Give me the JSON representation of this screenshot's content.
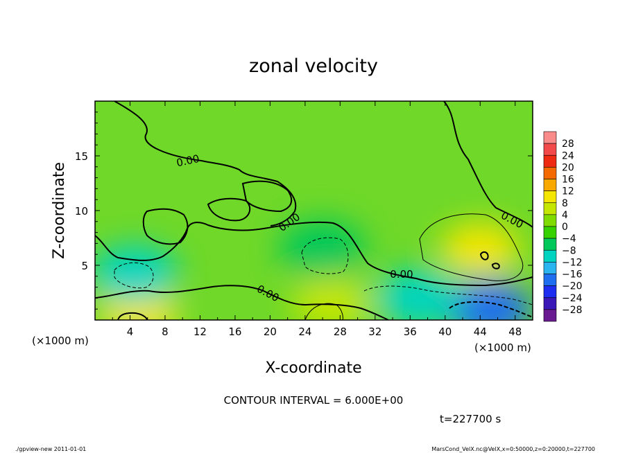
{
  "chart_data": {
    "type": "heatmap",
    "title": "zonal velocity",
    "xlabel": "X-coordinate",
    "ylabel": "Z-coordinate",
    "x_unit": "(×1000 m)",
    "y_unit": "(×1000 m)",
    "xlim": [
      0,
      50
    ],
    "ylim": [
      0,
      20
    ],
    "x_ticks": [
      "4",
      "8",
      "12",
      "16",
      "20",
      "24",
      "28",
      "32",
      "36",
      "40",
      "44",
      "48"
    ],
    "y_ticks": [
      "5",
      "10",
      "15"
    ],
    "contour_interval_text": "CONTOUR INTERVAL = 6.000E+00",
    "time_text": "t=227700 s",
    "colorbar": {
      "labels": [
        "28",
        "24",
        "20",
        "16",
        "12",
        "8",
        "4",
        "0",
        "−4",
        "−8",
        "−12",
        "−16",
        "−20",
        "−24",
        "−28"
      ],
      "colors": [
        "#f98b8b",
        "#f24a4a",
        "#ee2a12",
        "#f46a00",
        "#f9a800",
        "#f4e600",
        "#c4e600",
        "#80dc00",
        "#35d200",
        "#00c85a",
        "#00d4c0",
        "#2ab4f0",
        "#1e6ef0",
        "#1e2ef0",
        "#3a18b8",
        "#6a1a90"
      ]
    },
    "contour_labels": [
      "0.00",
      "0.00",
      "0.00",
      "0.00",
      "0.00"
    ],
    "features": [
      {
        "kind": "positive",
        "x": 5,
        "z": 0.5,
        "value": 12
      },
      {
        "kind": "negative",
        "x": 4.5,
        "z": 4.2,
        "value": -10
      },
      {
        "kind": "negative",
        "x": 26,
        "z": 6.5,
        "value": -7
      },
      {
        "kind": "negative",
        "x": 45,
        "z": 1.0,
        "value": -18
      },
      {
        "kind": "negative",
        "x": 37,
        "z": 2.0,
        "value": -8
      },
      {
        "kind": "positive",
        "x": 44,
        "z": 6.5,
        "value": 10
      },
      {
        "kind": "positive",
        "x": 27,
        "z": 1.5,
        "value": 5
      }
    ]
  },
  "footer": {
    "left": "./gpview-new  2011-01-01",
    "right": "MarsCond_VelX.nc@VelX,x=0:50000,z=0:20000,t=227700"
  }
}
